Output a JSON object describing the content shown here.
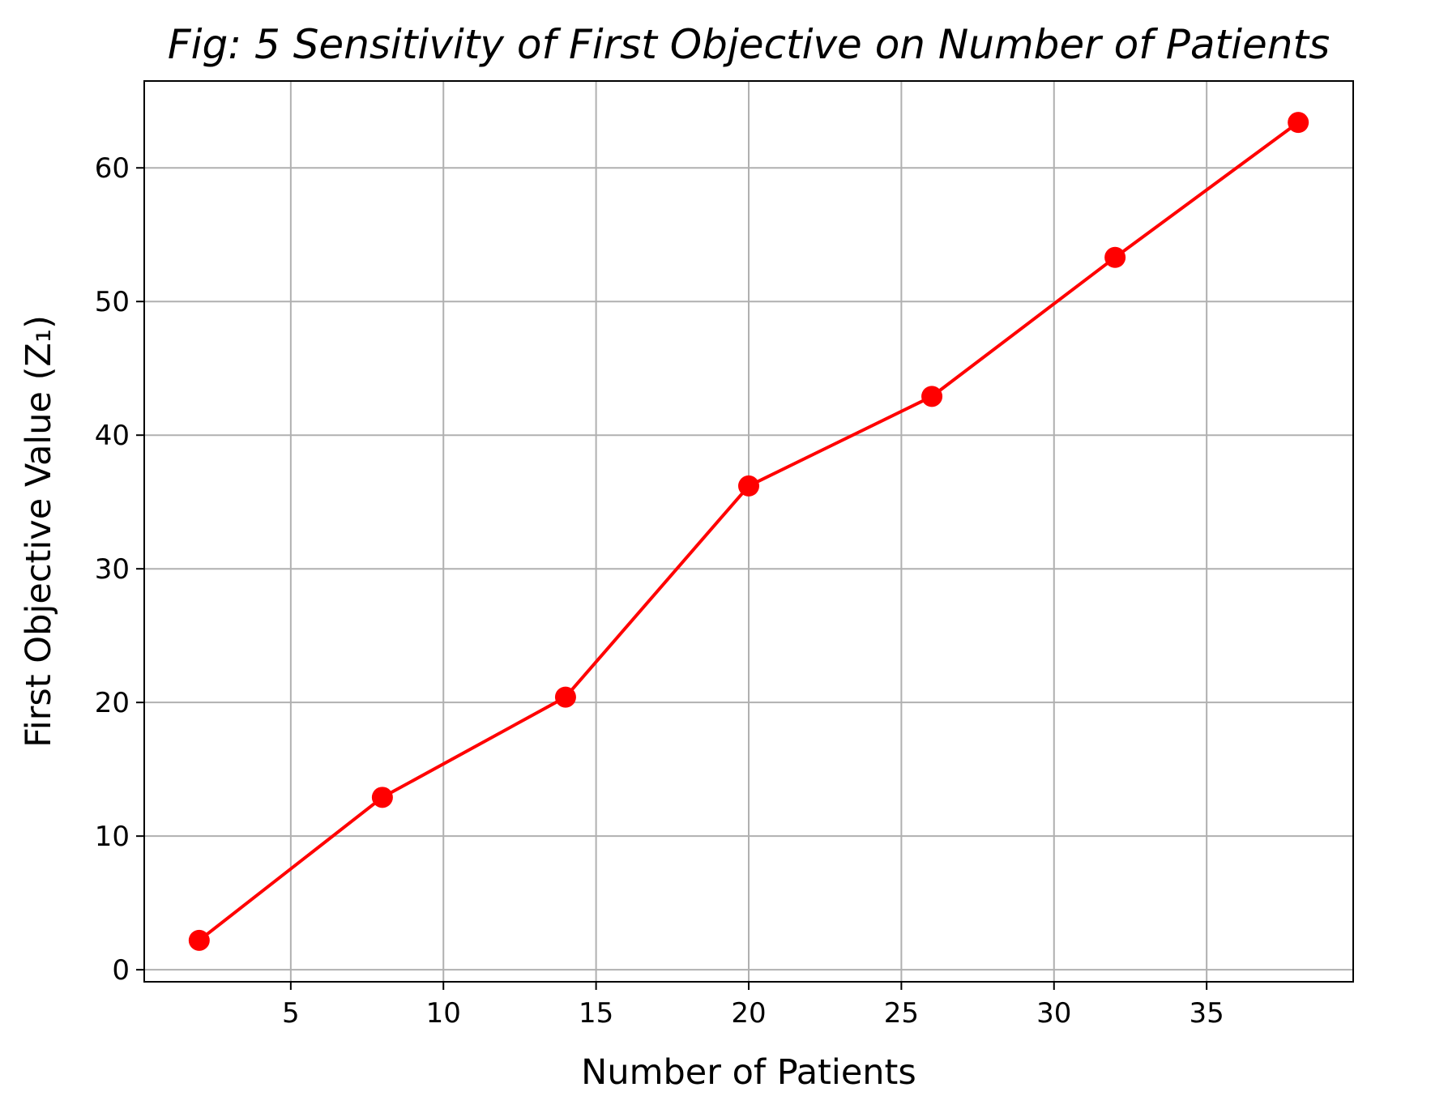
{
  "chart_data": {
    "type": "line",
    "title": "Fig: 5 Sensitivity of First Objective on Number of Patients",
    "xlabel": "Number of Patients",
    "ylabel": "First Objective Value (Z₁)",
    "xlim": [
      0.2,
      39.8
    ],
    "ylim": [
      -0.9,
      66.5
    ],
    "xticks": [
      5,
      10,
      15,
      20,
      25,
      30,
      35
    ],
    "yticks": [
      0,
      10,
      20,
      30,
      40,
      50,
      60
    ],
    "grid": true,
    "series": [
      {
        "color": "#ff0000",
        "marker": "circle",
        "points": [
          {
            "x": 2,
            "y": 2.2
          },
          {
            "x": 8,
            "y": 12.9
          },
          {
            "x": 14,
            "y": 20.4
          },
          {
            "x": 20,
            "y": 36.2
          },
          {
            "x": 26,
            "y": 42.9
          },
          {
            "x": 32,
            "y": 53.3
          },
          {
            "x": 38,
            "y": 63.4
          }
        ]
      }
    ]
  }
}
